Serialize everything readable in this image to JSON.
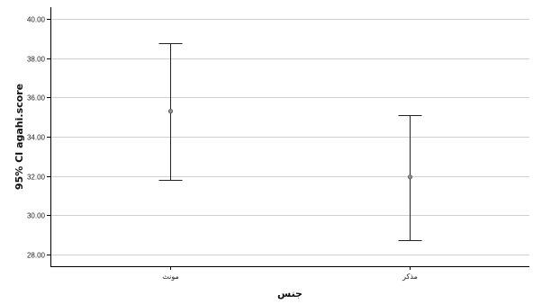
{
  "chart_data": {
    "type": "errorbar",
    "categories": [
      "مونث",
      "مذکر"
    ],
    "series": [
      {
        "values": [
          {
            "category": "مونث",
            "mean": 35.3,
            "lower": 31.82,
            "upper": 38.78
          },
          {
            "category": "مذکر",
            "mean": 31.95,
            "lower": 28.75,
            "upper": 35.12
          }
        ]
      }
    ],
    "xlabel": "جنس",
    "ylabel": "95% CI agahi.score",
    "ylim": [
      27.4,
      40.6
    ],
    "yticks": [
      "28.00",
      "30.00",
      "32.00",
      "34.00",
      "36.00",
      "38.00",
      "40.00"
    ],
    "grid": true
  }
}
